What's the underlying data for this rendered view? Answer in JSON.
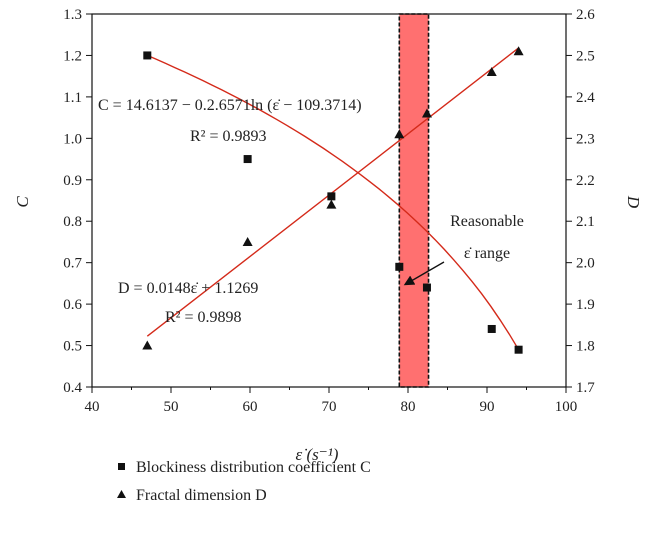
{
  "chart_data": {
    "type": "scatter",
    "xlabel": "ε̇ (s⁻¹)",
    "ylabel_left": "C",
    "ylabel_right": "D",
    "xlim": [
      40,
      100
    ],
    "ylim_left": [
      0.4,
      1.3
    ],
    "ylim_right": [
      1.7,
      2.6
    ],
    "x_ticks": [
      "40",
      "50",
      "60",
      "70",
      "80",
      "90",
      "100"
    ],
    "y_left_ticks": [
      "0.4",
      "0.5",
      "0.6",
      "0.7",
      "0.8",
      "0.9",
      "1.0",
      "1.1",
      "1.2",
      "1.3"
    ],
    "y_right_ticks": [
      "1.7",
      "1.8",
      "1.9",
      "2.0",
      "2.1",
      "2.2",
      "2.3",
      "2.4",
      "2.5",
      "2.6"
    ],
    "series": [
      {
        "name": "Blockiness distribution coefficient C",
        "marker": "square",
        "axis": "left",
        "x": [
          47.0,
          59.7,
          70.3,
          78.9,
          82.4,
          90.6,
          94.0
        ],
        "y": [
          1.2,
          0.95,
          0.86,
          0.69,
          0.64,
          0.54,
          0.49
        ]
      },
      {
        "name": "Fractal dimension D",
        "marker": "triangle",
        "axis": "right",
        "x": [
          47.0,
          59.7,
          70.3,
          78.9,
          82.4,
          90.6,
          94.0
        ],
        "y": [
          1.8,
          2.05,
          2.14,
          2.31,
          2.36,
          2.46,
          2.51
        ]
      }
    ],
    "fits": [
      {
        "target": "C",
        "kind": "log",
        "a": 14.6137,
        "b": 0.26571,
        "c": 109.3714,
        "x_range": [
          47.0,
          94.0
        ],
        "y_start": 1.2,
        "y_end": 0.49,
        "equation": "C = 14.6137 − 0.2.6571ln (ε̇ − 109.3714)",
        "r2": "R² = 0.9893"
      },
      {
        "target": "D",
        "kind": "linear",
        "slope": 0.0148,
        "intercept": 1.1269,
        "x_range": [
          47.0,
          94.0
        ],
        "equation": "D = 0.0148ε̇ + 1.1269",
        "r2": "R² = 0.9898"
      }
    ],
    "highlight_band": {
      "x": [
        78.9,
        82.6
      ],
      "color": "#ff7070",
      "label_line1": "Reasonable",
      "label_line2": "ε̇ range"
    },
    "line_color": "#d42a1a",
    "marker_color": "#111111",
    "legend": {
      "placement": "below",
      "entries": [
        "Blockiness distribution coefficient C",
        "Fractal dimension D"
      ]
    },
    "grid": false
  }
}
